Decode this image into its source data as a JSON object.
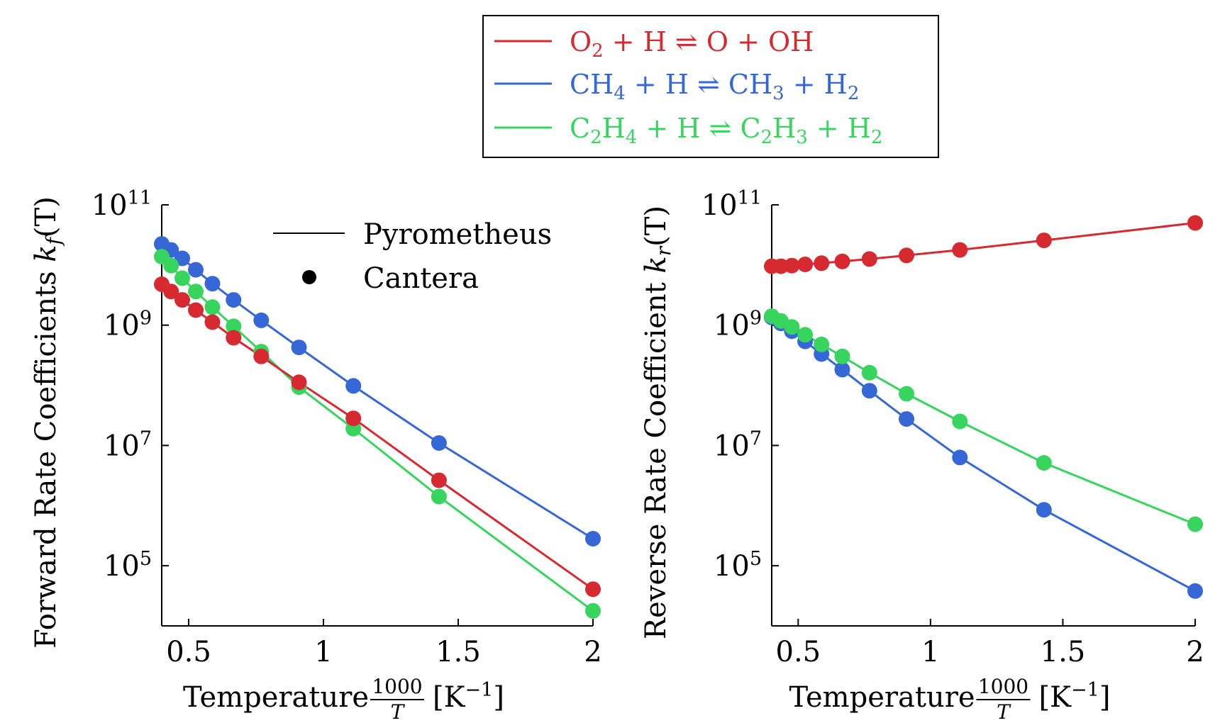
{
  "legend_top": {
    "entries": [
      {
        "series": "o2_h",
        "color": "#d62a30",
        "parts": [
          {
            "t": "O"
          },
          {
            "t": "2",
            "sub": true
          },
          {
            "t": " + H ⇌ O + OH"
          }
        ]
      },
      {
        "series": "ch4_h",
        "color": "#3567d6",
        "parts": [
          {
            "t": "CH"
          },
          {
            "t": "4",
            "sub": true
          },
          {
            "t": " + H ⇌ CH"
          },
          {
            "t": "3",
            "sub": true
          },
          {
            "t": " + H"
          },
          {
            "t": "2",
            "sub": true
          }
        ]
      },
      {
        "series": "c2h4_h",
        "color": "#37d45e",
        "parts": [
          {
            "t": "C"
          },
          {
            "t": "2",
            "sub": true
          },
          {
            "t": "H"
          },
          {
            "t": "4",
            "sub": true
          },
          {
            "t": " + H ⇌ C"
          },
          {
            "t": "2",
            "sub": true
          },
          {
            "t": "H"
          },
          {
            "t": "3",
            "sub": true
          },
          {
            "t": " + H"
          },
          {
            "t": "2",
            "sub": true
          }
        ]
      }
    ]
  },
  "legend_inner": {
    "line_label": "Pyrometheus",
    "marker_label": "Cantera"
  },
  "chart_data": [
    {
      "type": "line",
      "log_y": true,
      "ylabel_main": "Forward Rate Coefficients ",
      "ylabel_var": "k",
      "ylabel_sub": "f",
      "ylabel_tail": "(T)",
      "xlabel_pre": "Temperature ",
      "xlabel_frac_num": "1000",
      "xlabel_frac_den": "T",
      "xlabel_unit": "[K",
      "xlabel_unit_exp": "−1",
      "xlabel_unit_close": "]",
      "xlim": [
        0.4,
        2.0
      ],
      "ylim_exp": [
        4.0,
        11.0
      ],
      "xticks": [
        {
          "v": 0.5,
          "label": "0.5"
        },
        {
          "v": 1.0,
          "label": "1"
        },
        {
          "v": 1.5,
          "label": "1.5"
        },
        {
          "v": 2.0,
          "label": "2"
        }
      ],
      "yticks": [
        {
          "e": 5,
          "base": "10",
          "exp": "5"
        },
        {
          "e": 7,
          "base": "10",
          "exp": "7"
        },
        {
          "e": 9,
          "base": "10",
          "exp": "9"
        },
        {
          "e": 11,
          "base": "10",
          "exp": "11"
        }
      ],
      "x": [
        0.4,
        0.4348,
        0.4762,
        0.5263,
        0.5882,
        0.6667,
        0.7692,
        0.9091,
        1.1111,
        1.4286,
        2.0
      ],
      "series": [
        {
          "id": "ch4_h",
          "color": "#3567d6",
          "log10_values": [
            10.35,
            10.25,
            10.11,
            9.92,
            9.69,
            9.42,
            9.08,
            8.63,
            7.99,
            7.04,
            5.45
          ]
        },
        {
          "id": "c2h4_h",
          "color": "#37d45e",
          "log10_values": [
            10.14,
            9.99,
            9.78,
            9.56,
            9.3,
            8.98,
            8.56,
            7.97,
            7.28,
            6.15,
            4.25
          ]
        },
        {
          "id": "o2_h",
          "color": "#d62a30",
          "log10_values": [
            9.68,
            9.56,
            9.42,
            9.25,
            9.05,
            8.79,
            8.48,
            8.05,
            7.45,
            6.42,
            4.61
          ]
        }
      ]
    },
    {
      "type": "line",
      "log_y": true,
      "ylabel_main": "Reverse Rate Coefficient ",
      "ylabel_var": "k",
      "ylabel_sub": "r",
      "ylabel_tail": "(T)",
      "xlabel_pre": "Temperature ",
      "xlabel_frac_num": "1000",
      "xlabel_frac_den": "T",
      "xlabel_unit": "[K",
      "xlabel_unit_exp": "−1",
      "xlabel_unit_close": "]",
      "xlim": [
        0.4,
        2.0
      ],
      "ylim_exp": [
        4.0,
        11.0
      ],
      "xticks": [
        {
          "v": 0.5,
          "label": "0.5"
        },
        {
          "v": 1.0,
          "label": "1"
        },
        {
          "v": 1.5,
          "label": "1.5"
        },
        {
          "v": 2.0,
          "label": "2"
        }
      ],
      "yticks": [
        {
          "e": 5,
          "base": "10",
          "exp": "5"
        },
        {
          "e": 7,
          "base": "10",
          "exp": "7"
        },
        {
          "e": 9,
          "base": "10",
          "exp": "9"
        },
        {
          "e": 11,
          "base": "10",
          "exp": "11"
        }
      ],
      "x": [
        0.4,
        0.4348,
        0.4762,
        0.5263,
        0.5882,
        0.6667,
        0.7692,
        0.9091,
        1.1111,
        1.4286,
        2.0
      ],
      "series": [
        {
          "id": "o2_h",
          "color": "#d62a30",
          "log10_values": [
            9.98,
            9.98,
            9.99,
            10.01,
            10.03,
            10.06,
            10.1,
            10.16,
            10.25,
            10.41,
            10.7
          ]
        },
        {
          "id": "ch4_h",
          "color": "#3567d6",
          "log10_values": [
            9.13,
            9.03,
            8.9,
            8.73,
            8.52,
            8.26,
            7.91,
            7.44,
            6.8,
            5.93,
            4.58
          ]
        },
        {
          "id": "c2h4_h",
          "color": "#37d45e",
          "log10_values": [
            9.15,
            9.07,
            8.97,
            8.84,
            8.68,
            8.48,
            8.21,
            7.86,
            7.4,
            6.71,
            5.69
          ]
        }
      ]
    }
  ]
}
